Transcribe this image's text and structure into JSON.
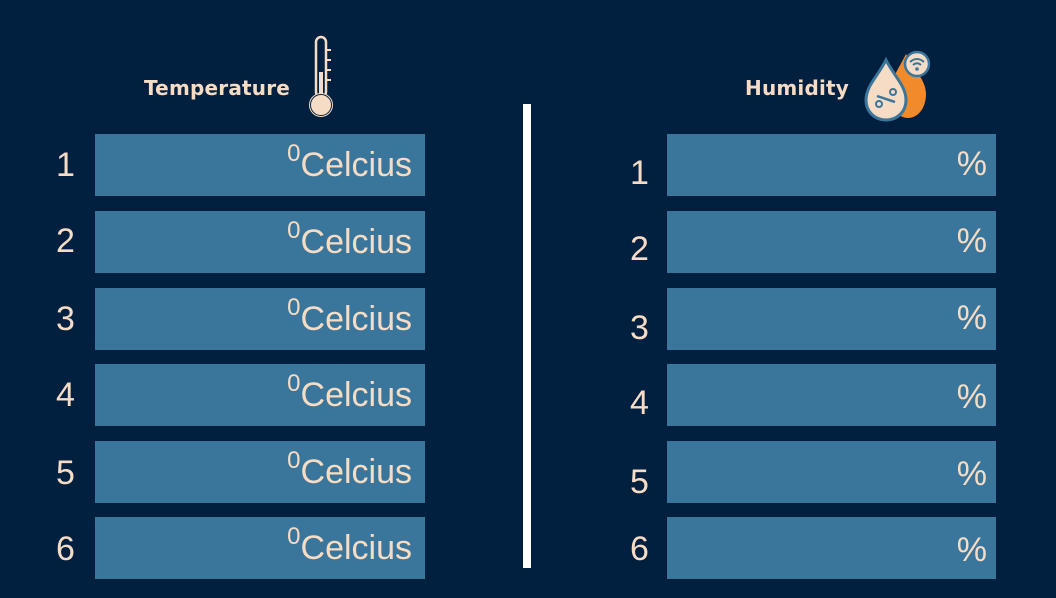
{
  "temperature": {
    "title": "Temperature",
    "icon": "thermometer-icon",
    "degree_superscript": "0",
    "unit": "Celcius",
    "rows": [
      {
        "number": "1"
      },
      {
        "number": "2"
      },
      {
        "number": "3"
      },
      {
        "number": "4"
      },
      {
        "number": "5"
      },
      {
        "number": "6"
      }
    ]
  },
  "humidity": {
    "title": "Humidity",
    "icon": "humidity-drops-icon",
    "unit": "%",
    "rows": [
      {
        "number": "1"
      },
      {
        "number": "2"
      },
      {
        "number": "3"
      },
      {
        "number": "4"
      },
      {
        "number": "5"
      },
      {
        "number": "6"
      }
    ]
  },
  "colors": {
    "background": "#011f3f",
    "field": "#3a769b",
    "text": "#f6dcc4",
    "accent": "#f08a2b",
    "divider": "#ffffff"
  }
}
